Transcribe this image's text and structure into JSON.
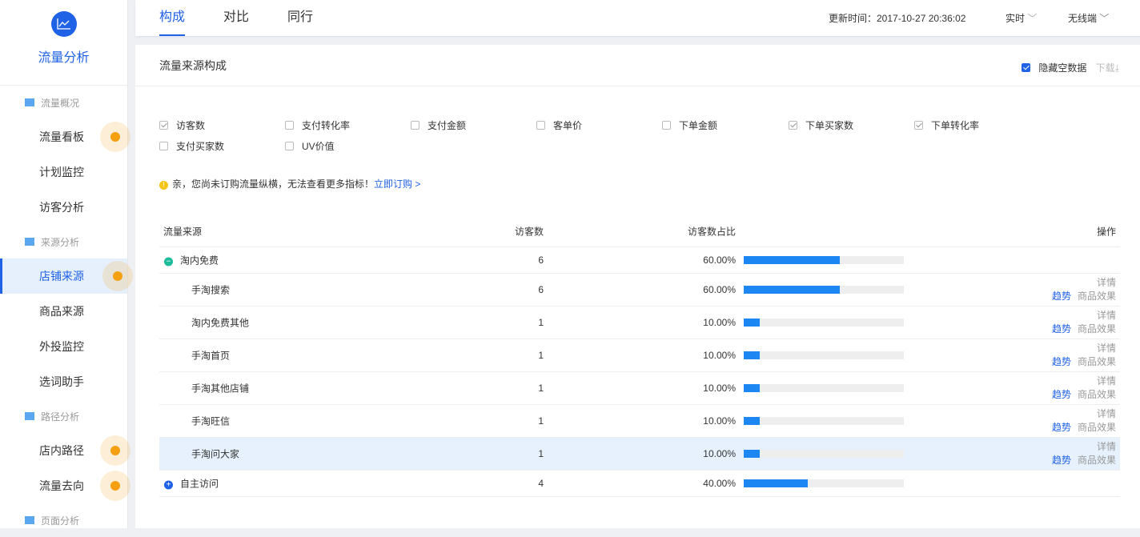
{
  "sidebar": {
    "title": "流量分析",
    "groups": [
      {
        "label": "流量概况",
        "items": [
          {
            "label": "流量看板",
            "dot": true
          },
          {
            "label": "计划监控"
          },
          {
            "label": "访客分析"
          }
        ]
      },
      {
        "label": "来源分析",
        "items": [
          {
            "label": "店铺来源",
            "dot": true,
            "active": true
          },
          {
            "label": "商品来源"
          },
          {
            "label": "外投监控"
          },
          {
            "label": "选词助手"
          }
        ]
      },
      {
        "label": "路径分析",
        "items": [
          {
            "label": "店内路径",
            "dot": true
          },
          {
            "label": "流量去向",
            "dot": true
          }
        ]
      },
      {
        "label": "页面分析",
        "items": []
      }
    ]
  },
  "topbar": {
    "tabs": [
      "构成",
      "对比",
      "同行"
    ],
    "active_tab": 0,
    "update_time": "更新时间：2017-10-27 20:36:02",
    "period": "实时",
    "device": "无线端"
  },
  "panel": {
    "title": "流量来源构成",
    "hide_empty": "隐藏空数据",
    "hide_empty_checked": true,
    "download": "下载"
  },
  "metrics": [
    {
      "label": "访客数",
      "checked": true
    },
    {
      "label": "支付转化率",
      "checked": false
    },
    {
      "label": "支付金额",
      "checked": false
    },
    {
      "label": "客单价",
      "checked": false
    },
    {
      "label": "下单金额",
      "checked": false
    },
    {
      "label": "下单买家数",
      "checked": true
    },
    {
      "label": "下单转化率",
      "checked": true
    },
    {
      "label": "支付买家数",
      "checked": false
    },
    {
      "label": "UV价值",
      "checked": false
    }
  ],
  "notice": {
    "text": "亲，您尚未订购流量纵横，无法查看更多指标！",
    "link": "立即订购 >"
  },
  "table": {
    "headers": [
      "流量来源",
      "访客数",
      "访客数占比",
      "操作"
    ],
    "rows": [
      {
        "name": "淘内免费",
        "visitors": "6",
        "ratio": "60.00%",
        "pct": 60,
        "level": 0,
        "toggle": "collapse"
      },
      {
        "name": "手淘搜索",
        "visitors": "6",
        "ratio": "60.00%",
        "pct": 60,
        "level": 1
      },
      {
        "name": "淘内免费其他",
        "visitors": "1",
        "ratio": "10.00%",
        "pct": 10,
        "level": 1
      },
      {
        "name": "手淘首页",
        "visitors": "1",
        "ratio": "10.00%",
        "pct": 10,
        "level": 1
      },
      {
        "name": "手淘其他店铺",
        "visitors": "1",
        "ratio": "10.00%",
        "pct": 10,
        "level": 1
      },
      {
        "name": "手淘旺信",
        "visitors": "1",
        "ratio": "10.00%",
        "pct": 10,
        "level": 1
      },
      {
        "name": "手淘问大家",
        "visitors": "1",
        "ratio": "10.00%",
        "pct": 10,
        "level": 1,
        "highlight": true
      },
      {
        "name": "自主访问",
        "visitors": "4",
        "ratio": "40.00%",
        "pct": 40,
        "level": 0,
        "toggle": "expand"
      }
    ],
    "actions": {
      "detail": "详情",
      "trend": "趋势",
      "product": "商品效果"
    }
  },
  "colors": {
    "accent": "#2062e6",
    "bar": "#1c86f2",
    "dot": "#f5a00f",
    "collapse": "#1abc9c"
  }
}
